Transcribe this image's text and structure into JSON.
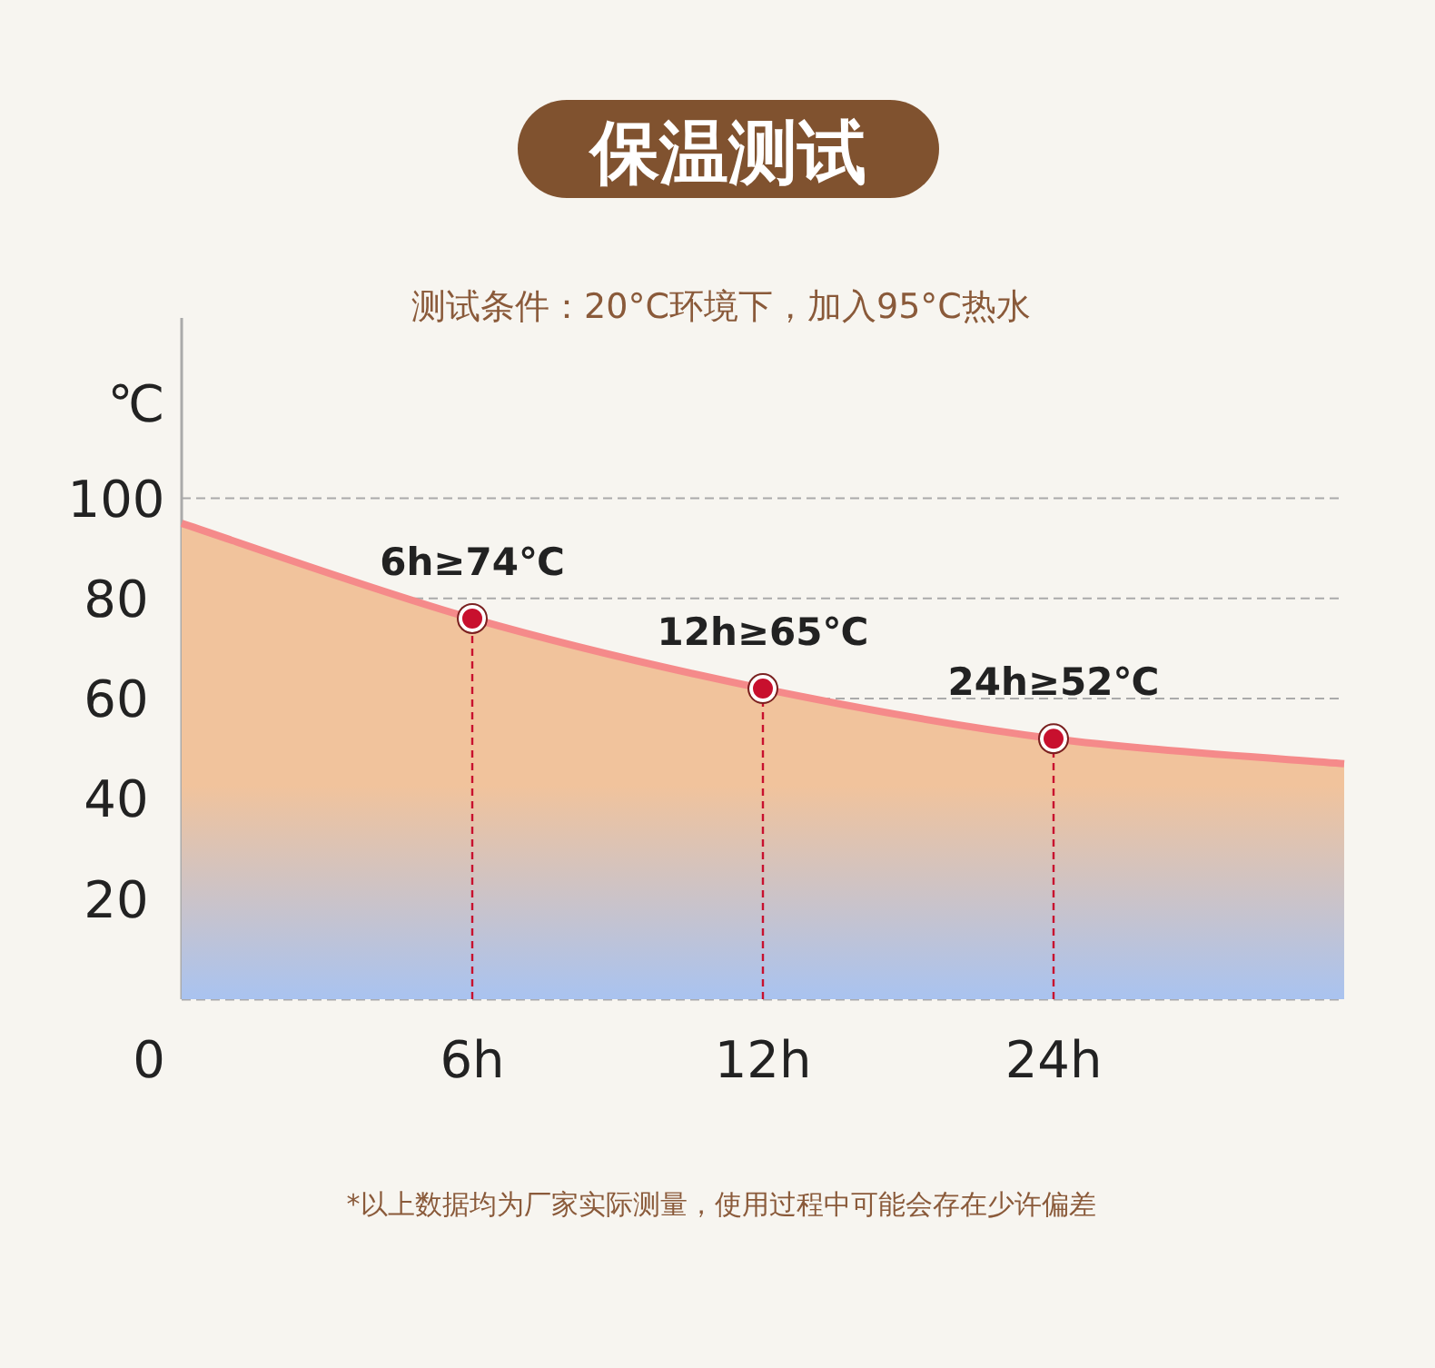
{
  "chart_data": {
    "type": "area",
    "title": "保温测试",
    "subtitle": "测试条件：20°C环境下，加入95°C热水",
    "ylabel": "℃",
    "categories": [
      "0",
      "6h",
      "12h",
      "24h",
      null
    ],
    "series": [
      {
        "color": "#f58a8a",
        "values": [
          95,
          76,
          62,
          52,
          47
        ]
      },
      {
        "type": "lollipop",
        "color": "#c8102e",
        "marker": "circle",
        "line_style": "dashed",
        "values": [
          null,
          76,
          62,
          52,
          null
        ]
      }
    ],
    "ylim": [
      0,
      136
    ],
    "yticks": [
      20,
      40,
      60,
      80,
      100
    ],
    "grid": "y",
    "annotations": [
      {
        "text": "6h≥74℃",
        "x": "6h",
        "y": 76
      },
      {
        "text": "12h≥65℃",
        "x": "12h",
        "y": 62
      },
      {
        "text": "24h≥52℃",
        "x": "24h",
        "y": 52
      },
      "*以上数据均为厂家实际测量，使用过程中可能会存在少许偏差"
    ]
  }
}
